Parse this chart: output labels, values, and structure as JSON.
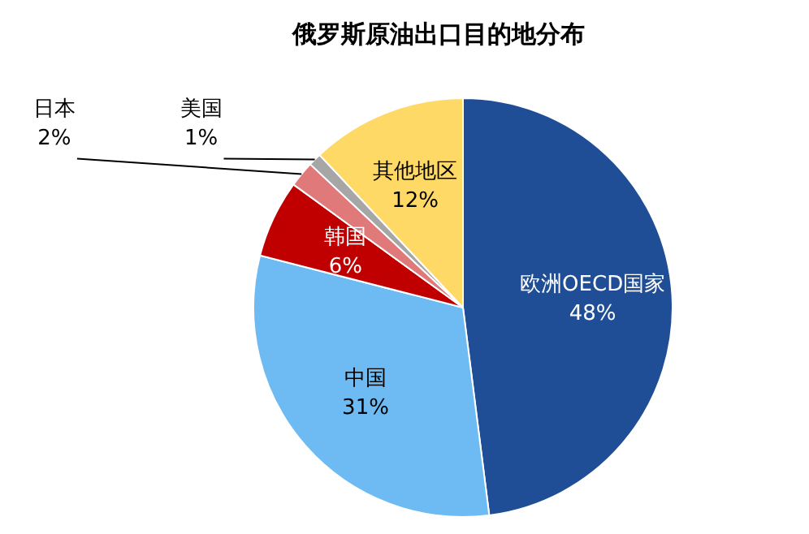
{
  "chart_data": {
    "type": "pie",
    "title": "俄罗斯原油出口目的地分布",
    "categories": [
      "欧洲OECD国家",
      "中国",
      "韩国",
      "日本",
      "美国",
      "其他地区"
    ],
    "values": [
      48,
      31,
      6,
      2,
      1,
      12
    ],
    "value_labels": [
      "48%",
      "31%",
      "6%",
      "2%",
      "1%",
      "12%"
    ],
    "colors": [
      "#1f4e96",
      "#6dbbf2",
      "#c00000",
      "#e07a7a",
      "#a6a6a6",
      "#ffd966"
    ]
  }
}
